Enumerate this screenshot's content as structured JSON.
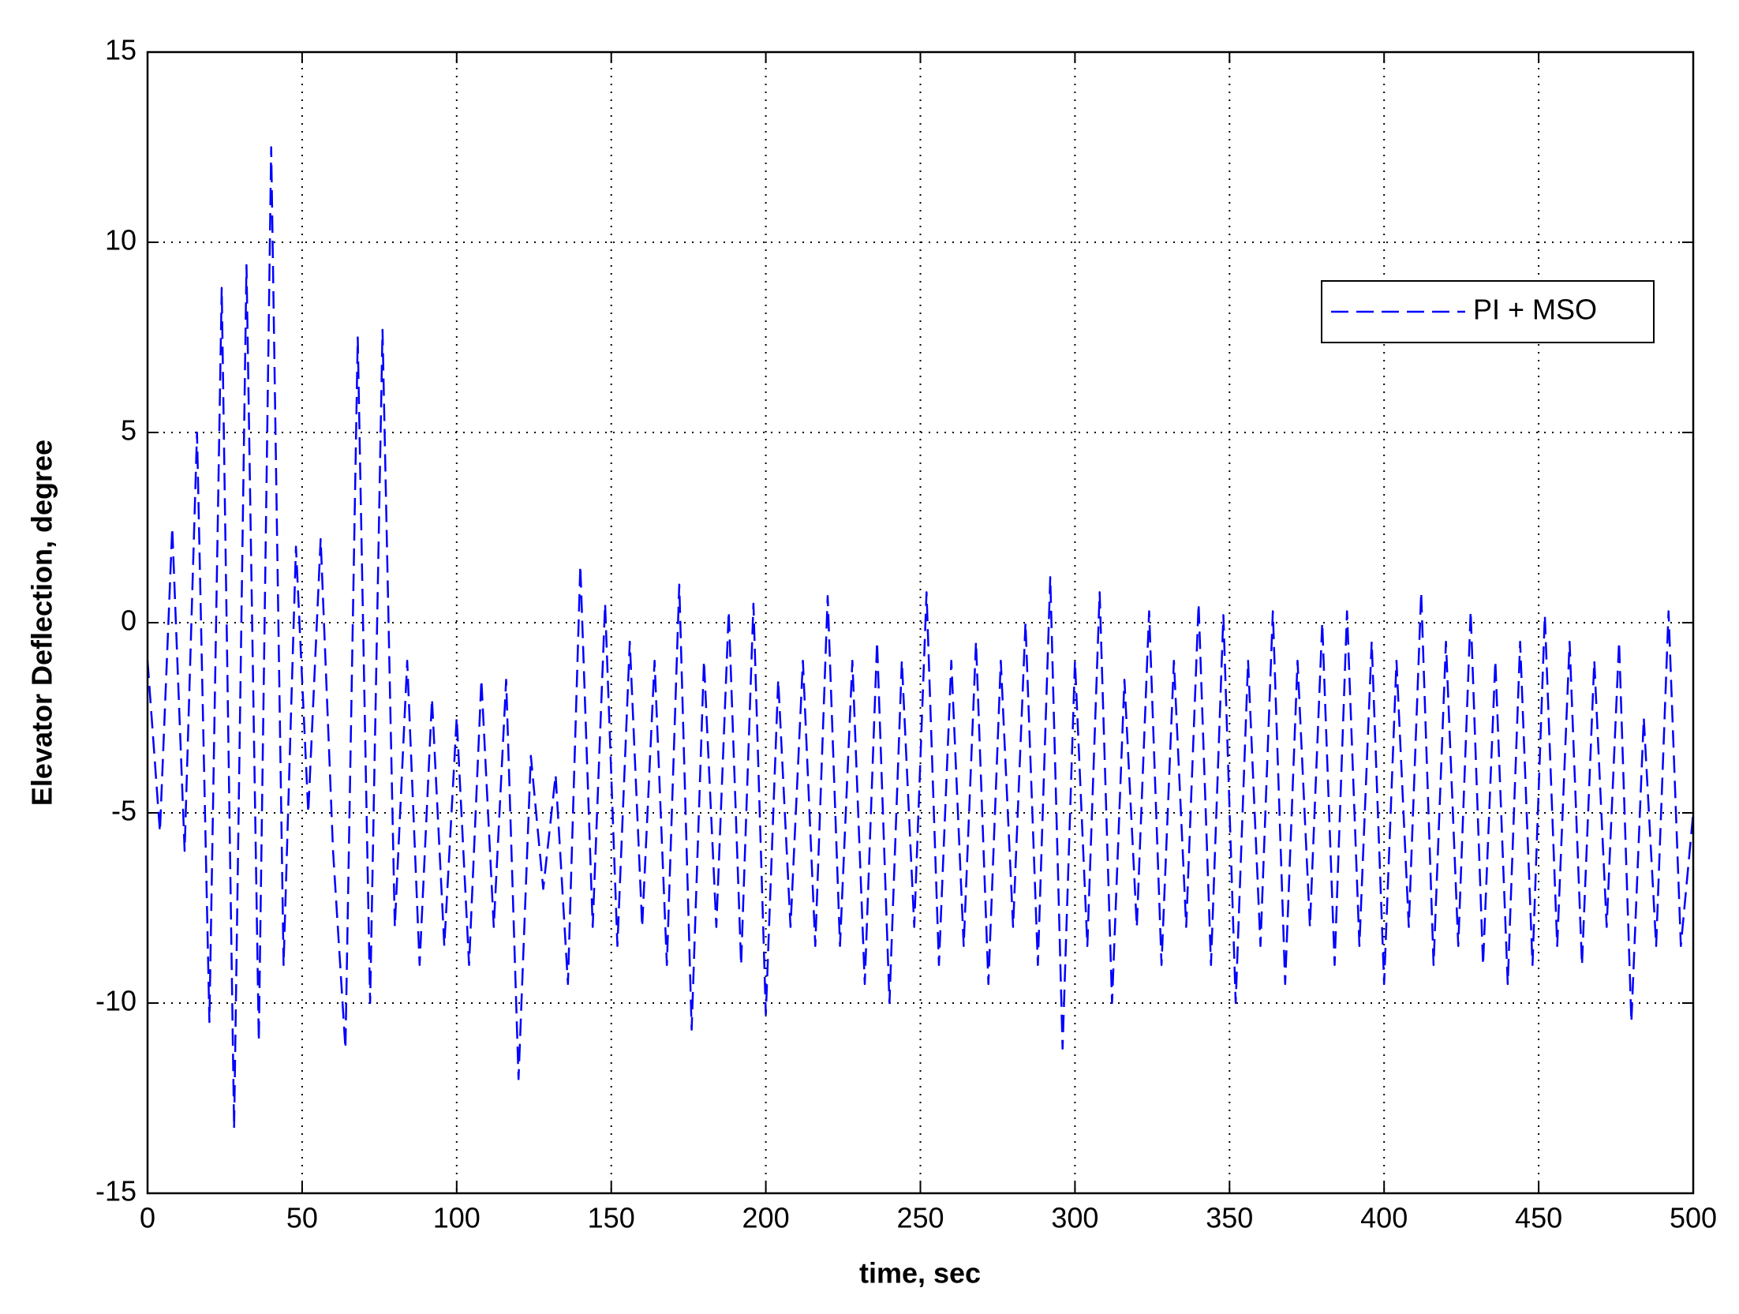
{
  "chart_data": {
    "type": "line",
    "x_label": "time, sec",
    "y_label": "Elevator Deflection, degree",
    "xlim": [
      0,
      500
    ],
    "ylim": [
      -15,
      15
    ],
    "xticks": [
      0,
      50,
      100,
      150,
      200,
      250,
      300,
      350,
      400,
      450,
      500
    ],
    "yticks": [
      -15,
      -10,
      -5,
      0,
      5,
      10,
      15
    ],
    "grid": true,
    "legend": "upper right",
    "x": [
      0,
      4,
      8,
      12,
      16,
      20,
      24,
      28,
      32,
      36,
      40,
      44,
      48,
      52,
      56,
      60,
      64,
      68,
      72,
      76,
      80,
      84,
      88,
      92,
      96,
      100,
      104,
      108,
      112,
      116,
      120,
      124,
      128,
      132,
      136,
      140,
      144,
      148,
      152,
      156,
      160,
      164,
      168,
      172,
      176,
      180,
      184,
      188,
      192,
      196,
      200,
      204,
      208,
      212,
      216,
      220,
      224,
      228,
      232,
      236,
      240,
      244,
      248,
      252,
      256,
      260,
      264,
      268,
      272,
      276,
      280,
      284,
      288,
      292,
      296,
      300,
      304,
      308,
      312,
      316,
      320,
      324,
      328,
      332,
      336,
      340,
      344,
      348,
      352,
      356,
      360,
      364,
      368,
      372,
      376,
      380,
      384,
      388,
      392,
      396,
      400,
      404,
      408,
      412,
      416,
      420,
      424,
      428,
      432,
      436,
      440,
      444,
      448,
      452,
      456,
      460,
      464,
      468,
      472,
      476,
      480,
      484,
      488,
      492,
      496,
      500
    ],
    "series": [
      {
        "name": "PI + MSO",
        "color": "#0000ff",
        "dashed": true,
        "values": [
          -1,
          -5.5,
          2.5,
          -6,
          5,
          -10.5,
          8.8,
          -13.3,
          9.4,
          -11,
          12.5,
          -9,
          2,
          -5,
          2.2,
          -6,
          -11.2,
          7.5,
          -10,
          7.7,
          -8,
          -1,
          -9,
          -2,
          -8.5,
          -2.5,
          -9,
          -1.5,
          -8,
          -1.5,
          -12,
          -3.5,
          -7,
          -4,
          -9.5,
          1.5,
          -8,
          0.5,
          -8.5,
          -0.5,
          -8,
          -1,
          -9,
          1,
          -10.7,
          -1,
          -8,
          0.3,
          -9,
          0.5,
          -10.3,
          -1.5,
          -8,
          -1,
          -8.5,
          0.7,
          -8.5,
          -1,
          -9.5,
          -0.5,
          -10,
          -1,
          -8,
          0.8,
          -9,
          -1,
          -8.5,
          -0.5,
          -9.5,
          -1,
          -8,
          0,
          -9,
          1.2,
          -11.2,
          -1,
          -8.5,
          0.8,
          -10,
          -1.5,
          -8,
          0.3,
          -9,
          -1,
          -8,
          0.5,
          -9,
          0.2,
          -10,
          -1,
          -8.5,
          0.3,
          -9.5,
          -1,
          -8,
          0,
          -9,
          0.3,
          -8.5,
          -0.5,
          -9.5,
          -1,
          -8,
          0.8,
          -9,
          -0.5,
          -8.5,
          0.3,
          -9,
          -1,
          -9.5,
          -0.5,
          -9,
          0.2,
          -8.5,
          -0.5,
          -9,
          -1,
          -8,
          -0.5,
          -10.5,
          -2.5,
          -8.5,
          0.3,
          -8.5,
          -5
        ]
      }
    ]
  }
}
